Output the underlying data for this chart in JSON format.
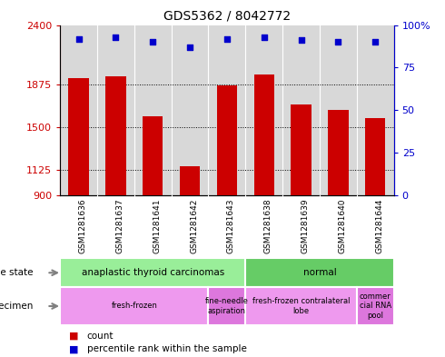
{
  "title": "GDS5362 / 8042772",
  "samples": [
    "GSM1281636",
    "GSM1281637",
    "GSM1281641",
    "GSM1281642",
    "GSM1281643",
    "GSM1281638",
    "GSM1281639",
    "GSM1281640",
    "GSM1281644"
  ],
  "counts": [
    1930,
    1945,
    1595,
    1160,
    1870,
    1965,
    1705,
    1650,
    1585
  ],
  "percentiles": [
    92,
    93,
    90,
    87,
    92,
    93,
    91,
    90,
    90
  ],
  "ylim_left": [
    900,
    2400
  ],
  "ylim_right": [
    0,
    100
  ],
  "yticks_left": [
    900,
    1125,
    1500,
    1875,
    2400
  ],
  "yticks_right": [
    0,
    25,
    50,
    75,
    100
  ],
  "ytick_labels_left": [
    "900",
    "1125",
    "1500",
    "1875",
    "2400"
  ],
  "ytick_labels_right": [
    "0",
    "25",
    "50",
    "75",
    "100%"
  ],
  "bar_color": "#cc0000",
  "dot_color": "#0000cc",
  "bar_width": 0.55,
  "grid_lines": [
    1125,
    1500,
    1875
  ],
  "disease_state_groups": [
    {
      "label": "anaplastic thyroid carcinomas",
      "start": 0,
      "end": 5,
      "color": "#99ee99"
    },
    {
      "label": "normal",
      "start": 5,
      "end": 9,
      "color": "#66cc66"
    }
  ],
  "specimen_groups": [
    {
      "label": "fresh-frozen",
      "start": 0,
      "end": 4,
      "color": "#ee99ee"
    },
    {
      "label": "fine-needle\naspiration",
      "start": 4,
      "end": 5,
      "color": "#dd77dd"
    },
    {
      "label": "fresh-frozen contralateral\nlobe",
      "start": 5,
      "end": 8,
      "color": "#ee99ee"
    },
    {
      "label": "commer\ncial RNA\npool",
      "start": 8,
      "end": 9,
      "color": "#dd77dd"
    }
  ],
  "legend_items": [
    {
      "color": "#cc0000",
      "label": "count"
    },
    {
      "color": "#0000cc",
      "label": "percentile rank within the sample"
    }
  ],
  "plot_bg_color": "#d8d8d8",
  "tick_area_color": "#c8c8c8",
  "background_color": "#ffffff"
}
